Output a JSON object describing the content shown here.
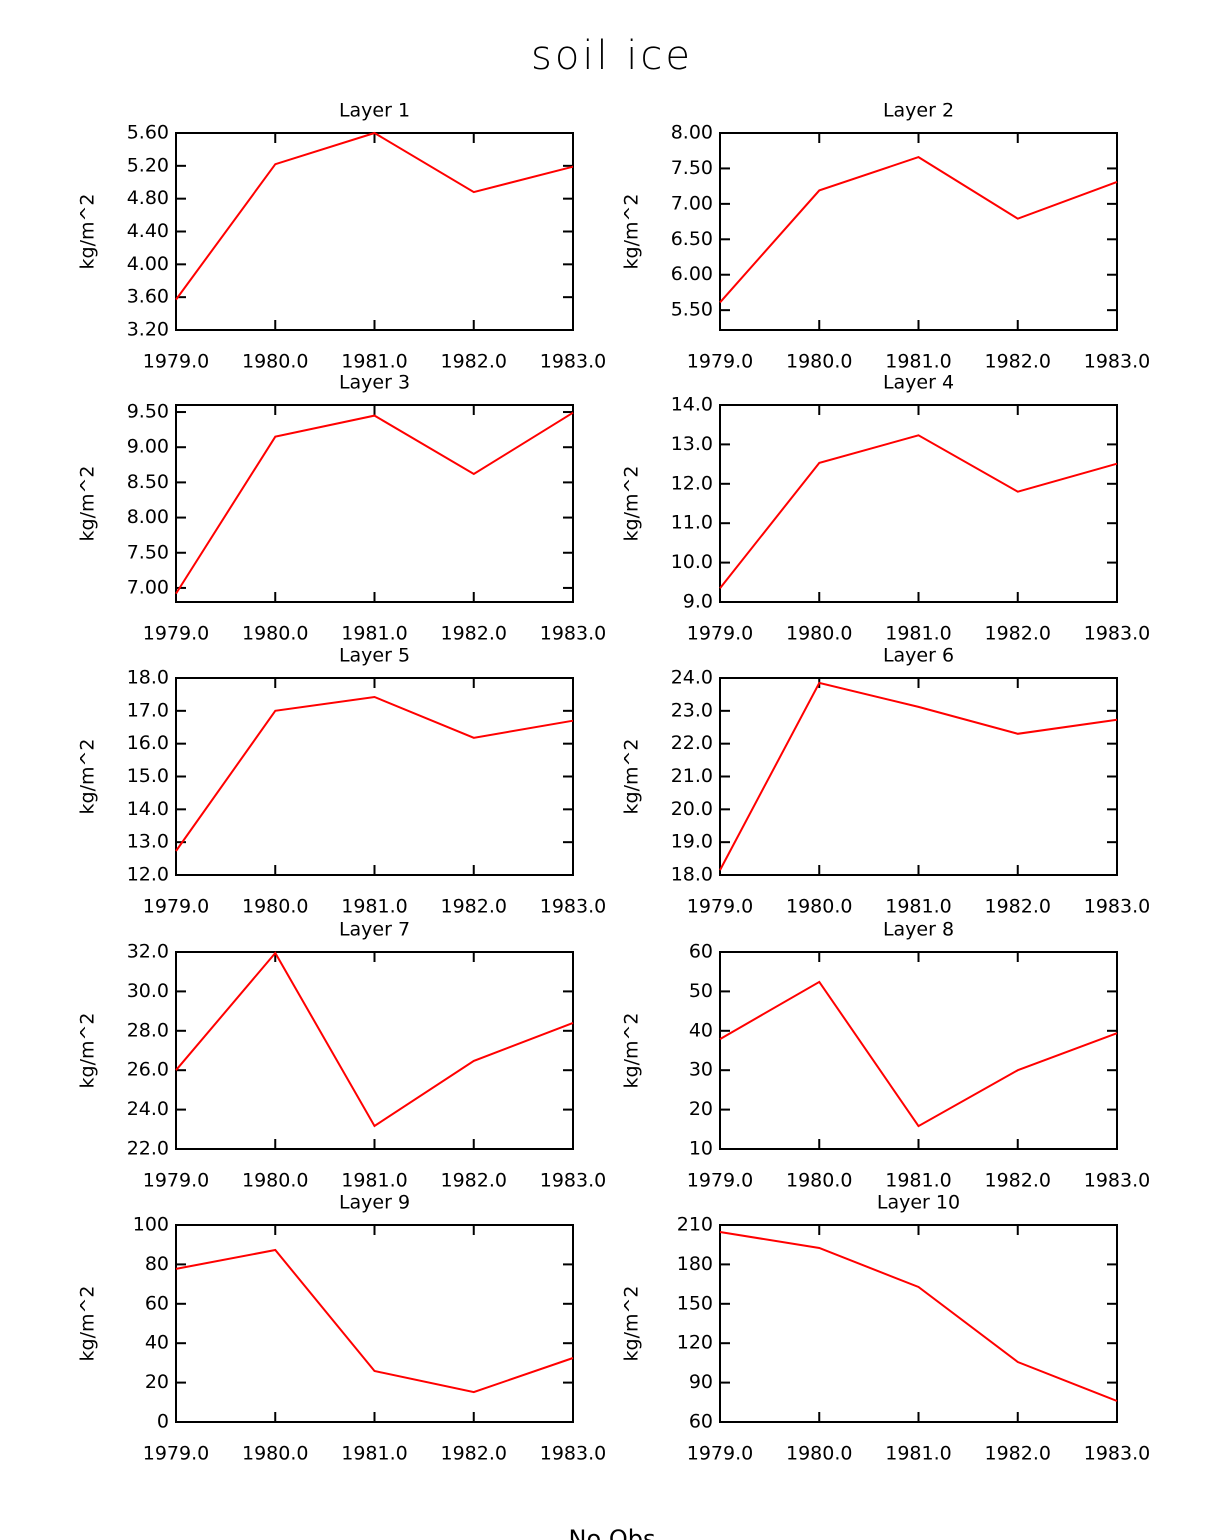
{
  "title": "soil ice",
  "footer": "No Obs",
  "chart_data": [
    {
      "type": "line",
      "title": "Layer 1",
      "ylabel": "kg/m^2",
      "x": [
        1979,
        1980,
        1981,
        1982,
        1983
      ],
      "values": [
        3.57,
        5.22,
        5.6,
        4.88,
        5.19
      ],
      "color": "#ff0000",
      "xlim": [
        1979,
        1983
      ],
      "xticks": [
        {
          "value": 1979,
          "label": "1979.0"
        },
        {
          "value": 1980,
          "label": "1980.0"
        },
        {
          "value": 1981,
          "label": "1981.0"
        },
        {
          "value": 1982,
          "label": "1982.0"
        },
        {
          "value": 1983,
          "label": "1983.0"
        }
      ],
      "ylim": [
        3.2,
        5.6
      ],
      "yticks": [
        {
          "value": 3.2,
          "label": "3.20"
        },
        {
          "value": 3.6,
          "label": "3.60"
        },
        {
          "value": 4.0,
          "label": "4.00"
        },
        {
          "value": 4.4,
          "label": "4.40"
        },
        {
          "value": 4.8,
          "label": "4.80"
        },
        {
          "value": 5.2,
          "label": "5.20"
        },
        {
          "value": 5.6,
          "label": "5.60"
        }
      ]
    },
    {
      "type": "line",
      "title": "Layer 2",
      "ylabel": "kg/m^2",
      "x": [
        1979,
        1980,
        1981,
        1982,
        1983
      ],
      "values": [
        5.61,
        7.19,
        7.66,
        6.79,
        7.31
      ],
      "color": "#ff0000",
      "xlim": [
        1979,
        1983
      ],
      "xticks": [
        {
          "value": 1979,
          "label": "1979.0"
        },
        {
          "value": 1980,
          "label": "1980.0"
        },
        {
          "value": 1981,
          "label": "1981.0"
        },
        {
          "value": 1982,
          "label": "1982.0"
        },
        {
          "value": 1983,
          "label": "1983.0"
        }
      ],
      "ylim": [
        5.22,
        8.0
      ],
      "yticks": [
        {
          "value": 5.5,
          "label": "5.50"
        },
        {
          "value": 6.0,
          "label": "6.00"
        },
        {
          "value": 6.5,
          "label": "6.50"
        },
        {
          "value": 7.0,
          "label": "7.00"
        },
        {
          "value": 7.5,
          "label": "7.50"
        },
        {
          "value": 8.0,
          "label": "8.00"
        }
      ]
    },
    {
      "type": "line",
      "title": "Layer 3",
      "ylabel": "kg/m^2",
      "x": [
        1979,
        1980,
        1981,
        1982,
        1983
      ],
      "values": [
        6.92,
        9.15,
        9.45,
        8.62,
        9.49
      ],
      "color": "#ff0000",
      "xlim": [
        1979,
        1983
      ],
      "xticks": [
        {
          "value": 1979,
          "label": "1979.0"
        },
        {
          "value": 1980,
          "label": "1980.0"
        },
        {
          "value": 1981,
          "label": "1981.0"
        },
        {
          "value": 1982,
          "label": "1982.0"
        },
        {
          "value": 1983,
          "label": "1983.0"
        }
      ],
      "ylim": [
        6.8,
        9.6
      ],
      "yticks": [
        {
          "value": 7.0,
          "label": "7.00"
        },
        {
          "value": 7.5,
          "label": "7.50"
        },
        {
          "value": 8.0,
          "label": "8.00"
        },
        {
          "value": 8.5,
          "label": "8.50"
        },
        {
          "value": 9.0,
          "label": "9.00"
        },
        {
          "value": 9.5,
          "label": "9.50"
        }
      ]
    },
    {
      "type": "line",
      "title": "Layer 4",
      "ylabel": "kg/m^2",
      "x": [
        1979,
        1980,
        1981,
        1982,
        1983
      ],
      "values": [
        9.35,
        12.53,
        13.23,
        11.8,
        12.51
      ],
      "color": "#ff0000",
      "xlim": [
        1979,
        1983
      ],
      "xticks": [
        {
          "value": 1979,
          "label": "1979.0"
        },
        {
          "value": 1980,
          "label": "1980.0"
        },
        {
          "value": 1981,
          "label": "1981.0"
        },
        {
          "value": 1982,
          "label": "1982.0"
        },
        {
          "value": 1983,
          "label": "1983.0"
        }
      ],
      "ylim": [
        9,
        14
      ],
      "yticks": [
        {
          "value": 9,
          "label": "9.0"
        },
        {
          "value": 10,
          "label": "10.0"
        },
        {
          "value": 11,
          "label": "11.0"
        },
        {
          "value": 12,
          "label": "12.0"
        },
        {
          "value": 13,
          "label": "13.0"
        },
        {
          "value": 14,
          "label": "14.0"
        }
      ]
    },
    {
      "type": "line",
      "title": "Layer 5",
      "ylabel": "kg/m^2",
      "x": [
        1979,
        1980,
        1981,
        1982,
        1983
      ],
      "values": [
        12.73,
        17.0,
        17.42,
        16.18,
        16.7
      ],
      "color": "#ff0000",
      "xlim": [
        1979,
        1983
      ],
      "xticks": [
        {
          "value": 1979,
          "label": "1979.0"
        },
        {
          "value": 1980,
          "label": "1980.0"
        },
        {
          "value": 1981,
          "label": "1981.0"
        },
        {
          "value": 1982,
          "label": "1982.0"
        },
        {
          "value": 1983,
          "label": "1983.0"
        }
      ],
      "ylim": [
        12,
        18
      ],
      "yticks": [
        {
          "value": 12,
          "label": "12.0"
        },
        {
          "value": 13,
          "label": "13.0"
        },
        {
          "value": 14,
          "label": "14.0"
        },
        {
          "value": 15,
          "label": "15.0"
        },
        {
          "value": 16,
          "label": "16.0"
        },
        {
          "value": 17,
          "label": "17.0"
        },
        {
          "value": 18,
          "label": "18.0"
        }
      ]
    },
    {
      "type": "line",
      "title": "Layer 6",
      "ylabel": "kg/m^2",
      "x": [
        1979,
        1980,
        1981,
        1982,
        1983
      ],
      "values": [
        18.15,
        23.85,
        23.12,
        22.3,
        22.73
      ],
      "color": "#ff0000",
      "xlim": [
        1979,
        1983
      ],
      "xticks": [
        {
          "value": 1979,
          "label": "1979.0"
        },
        {
          "value": 1980,
          "label": "1980.0"
        },
        {
          "value": 1981,
          "label": "1981.0"
        },
        {
          "value": 1982,
          "label": "1982.0"
        },
        {
          "value": 1983,
          "label": "1983.0"
        }
      ],
      "ylim": [
        18,
        24
      ],
      "yticks": [
        {
          "value": 18,
          "label": "18.0"
        },
        {
          "value": 19,
          "label": "19.0"
        },
        {
          "value": 20,
          "label": "20.0"
        },
        {
          "value": 21,
          "label": "21.0"
        },
        {
          "value": 22,
          "label": "22.0"
        },
        {
          "value": 23,
          "label": "23.0"
        },
        {
          "value": 24,
          "label": "24.0"
        }
      ]
    },
    {
      "type": "line",
      "title": "Layer 7",
      "ylabel": "kg/m^2",
      "x": [
        1979,
        1980,
        1981,
        1982,
        1983
      ],
      "values": [
        26.0,
        31.95,
        23.17,
        26.47,
        28.4
      ],
      "color": "#ff0000",
      "xlim": [
        1979,
        1983
      ],
      "xticks": [
        {
          "value": 1979,
          "label": "1979.0"
        },
        {
          "value": 1980,
          "label": "1980.0"
        },
        {
          "value": 1981,
          "label": "1981.0"
        },
        {
          "value": 1982,
          "label": "1982.0"
        },
        {
          "value": 1983,
          "label": "1983.0"
        }
      ],
      "ylim": [
        22,
        32
      ],
      "yticks": [
        {
          "value": 22,
          "label": "22.0"
        },
        {
          "value": 24,
          "label": "24.0"
        },
        {
          "value": 26,
          "label": "26.0"
        },
        {
          "value": 28,
          "label": "28.0"
        },
        {
          "value": 30,
          "label": "30.0"
        },
        {
          "value": 32,
          "label": "32.0"
        }
      ]
    },
    {
      "type": "line",
      "title": "Layer 8",
      "ylabel": "kg/m^2",
      "x": [
        1979,
        1980,
        1981,
        1982,
        1983
      ],
      "values": [
        37.9,
        52.4,
        15.8,
        30.0,
        39.4
      ],
      "color": "#ff0000",
      "xlim": [
        1979,
        1983
      ],
      "xticks": [
        {
          "value": 1979,
          "label": "1979.0"
        },
        {
          "value": 1980,
          "label": "1980.0"
        },
        {
          "value": 1981,
          "label": "1981.0"
        },
        {
          "value": 1982,
          "label": "1982.0"
        },
        {
          "value": 1983,
          "label": "1983.0"
        }
      ],
      "ylim": [
        10,
        60
      ],
      "yticks": [
        10,
        20,
        30,
        40,
        50,
        60
      ]
    },
    {
      "type": "line",
      "title": "Layer 9",
      "ylabel": "kg/m^2",
      "x": [
        1979,
        1980,
        1981,
        1982,
        1983
      ],
      "values": [
        77.7,
        87.3,
        25.9,
        15.2,
        32.5
      ],
      "color": "#ff0000",
      "xlim": [
        1979,
        1983
      ],
      "xticks": [
        {
          "value": 1979,
          "label": "1979.0"
        },
        {
          "value": 1980,
          "label": "1980.0"
        },
        {
          "value": 1981,
          "label": "1981.0"
        },
        {
          "value": 1982,
          "label": "1982.0"
        },
        {
          "value": 1983,
          "label": "1983.0"
        }
      ],
      "ylim": [
        0,
        100
      ],
      "yticks": [
        0,
        20,
        40,
        60,
        80,
        100
      ]
    },
    {
      "type": "line",
      "title": "Layer 10",
      "ylabel": "kg/m^2",
      "x": [
        1979,
        1980,
        1981,
        1982,
        1983
      ],
      "values": [
        204.7,
        192.5,
        162.8,
        105.7,
        76
      ],
      "color": "#ff0000",
      "xlim": [
        1979,
        1983
      ],
      "xticks": [
        {
          "value": 1979,
          "label": "1979.0"
        },
        {
          "value": 1980,
          "label": "1980.0"
        },
        {
          "value": 1981,
          "label": "1981.0"
        },
        {
          "value": 1982,
          "label": "1982.0"
        },
        {
          "value": 1983,
          "label": "1983.0"
        }
      ],
      "ylim": [
        60,
        210
      ],
      "yticks": [
        60,
        90,
        120,
        150,
        180,
        210
      ]
    }
  ]
}
